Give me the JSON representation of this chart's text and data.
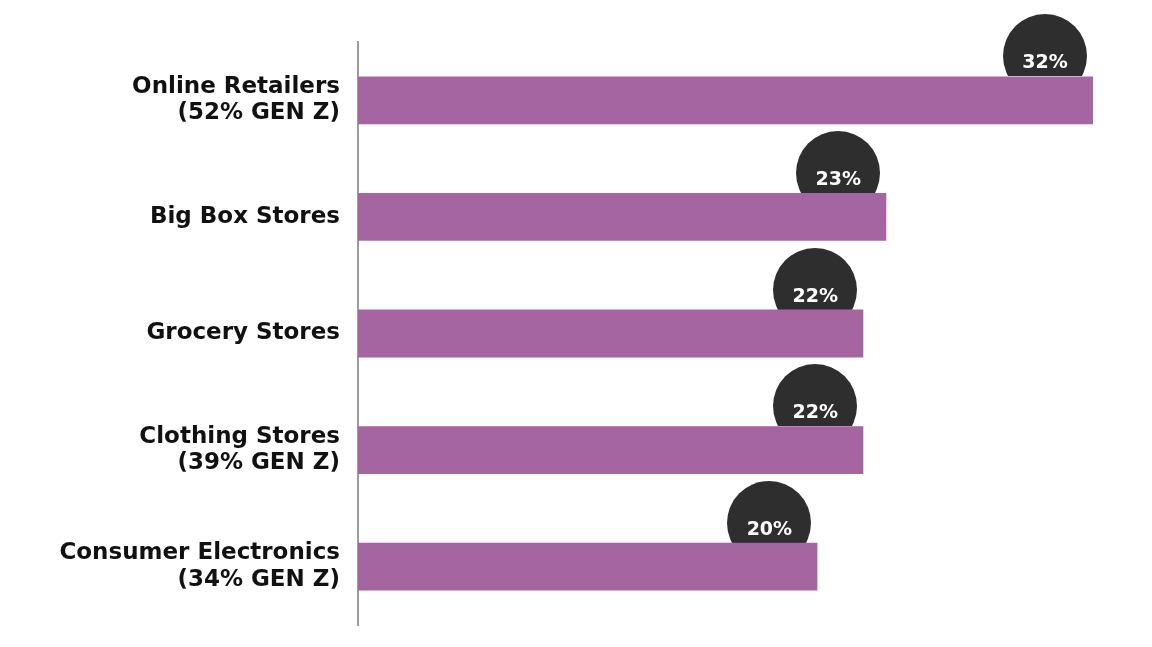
{
  "chart_data": {
    "type": "bar",
    "orientation": "horizontal",
    "categories": [
      "Online Retailers\n(52% GEN Z)",
      "Big Box Stores",
      "Grocery Stores",
      "Clothing Stores\n(39% GEN Z)",
      "Consumer Electronics\n(34% GEN Z)"
    ],
    "values": [
      32,
      23,
      22,
      22,
      20
    ],
    "color": "#a465a1",
    "value_labels": [
      "32%",
      "23%",
      "22%",
      "22%",
      "20%"
    ],
    "tick_labels": "y",
    "grid": false,
    "legend": false
  }
}
